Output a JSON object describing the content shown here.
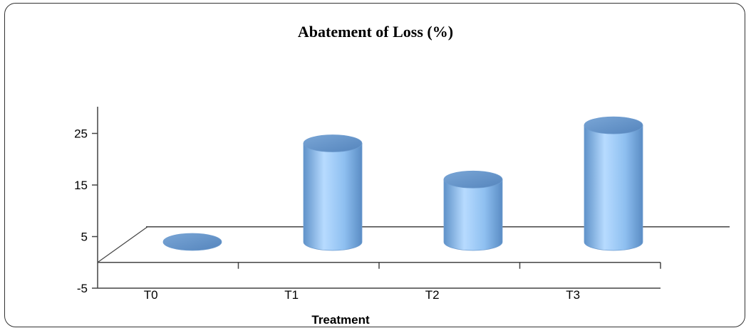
{
  "chart_data": {
    "type": "bar",
    "title": "Abatement of Loss (%)",
    "xlabel": "Treatment",
    "ylabel": "",
    "categories": [
      "T0",
      "T1",
      "T2",
      "T3"
    ],
    "values": [
      0,
      21,
      14,
      24.5
    ],
    "yticks": [
      "25",
      "15",
      "5",
      "-5"
    ],
    "ylim": [
      -5,
      30
    ],
    "grid": false,
    "legend": "none",
    "style": "3d-cylinder",
    "bar_color": "#8ebff0"
  }
}
